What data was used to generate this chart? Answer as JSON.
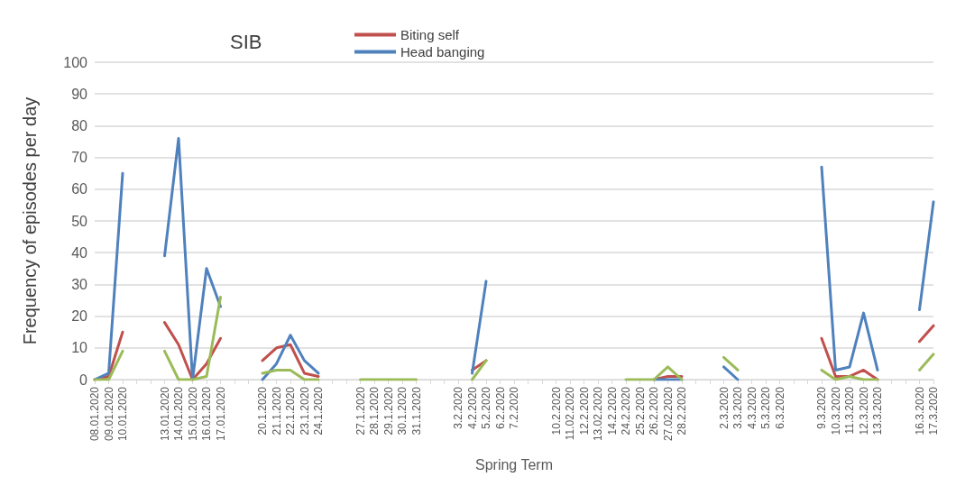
{
  "chart_data": {
    "type": "line",
    "title": "SIB",
    "xlabel": "Spring Term",
    "ylabel": "Frequency of episodes per day",
    "categories": [
      "08.01.2020",
      "09.01.2020",
      "10.01.2020",
      null,
      null,
      "13.01.2020",
      "14.01.2020",
      "15.01.2020",
      "16.01.2020",
      "17.01.2020",
      null,
      null,
      "20.1.2020",
      "21.1.2020",
      "22.1.2020",
      "23.1.2020",
      "24.1.2020",
      null,
      null,
      "27.1.2020",
      "28.1.2020",
      "29.1.2020",
      "30.1.2020",
      "31.1.2020",
      null,
      null,
      "3.2.2020",
      "4.2.2020",
      "5.2.2020",
      "6.2.2020",
      "7.2.2020",
      null,
      null,
      "10.2.2020",
      "11.02.2020",
      "12.2.2020",
      "13.02.2020",
      "14.2.2020",
      "24.2.2020",
      "25.2.2020",
      "26.2.2020",
      "27.02.2020",
      "28.2.2020",
      null,
      null,
      "2.3.2020",
      "3.3.2020",
      "4.3.2020",
      "5.3.2020",
      "6.3.2020",
      null,
      null,
      "9.3.2020",
      "10.3.2020",
      "11.3.2020",
      "12.3.2020",
      "13.3.2020",
      null,
      null,
      "16.3.2020",
      "17.3.2020"
    ],
    "series": [
      {
        "name": "Biting self",
        "color": "#c0504d",
        "values": [
          0,
          1,
          15,
          null,
          null,
          18,
          11,
          0,
          5,
          13,
          null,
          null,
          6,
          10,
          11,
          2,
          1,
          null,
          null,
          null,
          null,
          null,
          null,
          null,
          null,
          null,
          null,
          3,
          6,
          null,
          null,
          null,
          null,
          null,
          null,
          null,
          null,
          null,
          null,
          null,
          0,
          1,
          1,
          null,
          null,
          null,
          null,
          null,
          null,
          null,
          null,
          null,
          13,
          1,
          1,
          3,
          0,
          null,
          null,
          12,
          17
        ]
      },
      {
        "name": "Head banging",
        "color": "#4f81bd",
        "values": [
          0,
          2,
          65,
          null,
          null,
          39,
          76,
          0,
          35,
          23,
          null,
          null,
          0,
          5,
          14,
          6,
          2,
          null,
          null,
          null,
          null,
          null,
          null,
          null,
          null,
          null,
          null,
          2,
          31,
          null,
          null,
          null,
          null,
          null,
          null,
          null,
          null,
          null,
          null,
          null,
          0,
          0,
          0,
          null,
          null,
          4,
          0,
          null,
          null,
          null,
          null,
          null,
          67,
          3,
          4,
          21,
          3,
          null,
          null,
          22,
          56
        ]
      },
      {
        "color": "#9bbb59",
        "values": [
          0,
          0,
          9,
          null,
          null,
          9,
          0,
          0,
          1,
          26,
          null,
          null,
          2,
          3,
          3,
          0,
          0,
          null,
          null,
          0,
          0,
          0,
          0,
          0,
          null,
          null,
          null,
          0,
          6,
          null,
          null,
          null,
          null,
          null,
          null,
          null,
          null,
          null,
          0,
          0,
          0,
          4,
          0,
          null,
          null,
          7,
          3,
          null,
          null,
          null,
          null,
          null,
          3,
          0,
          1,
          0,
          0,
          null,
          null,
          3,
          8
        ]
      }
    ],
    "ylim": [
      0,
      100
    ],
    "yticks": [
      0,
      10,
      20,
      30,
      40,
      50,
      60,
      70,
      80,
      90,
      100
    ],
    "grid": "y",
    "legend": "top",
    "marker": "none",
    "line_style": "solid"
  }
}
